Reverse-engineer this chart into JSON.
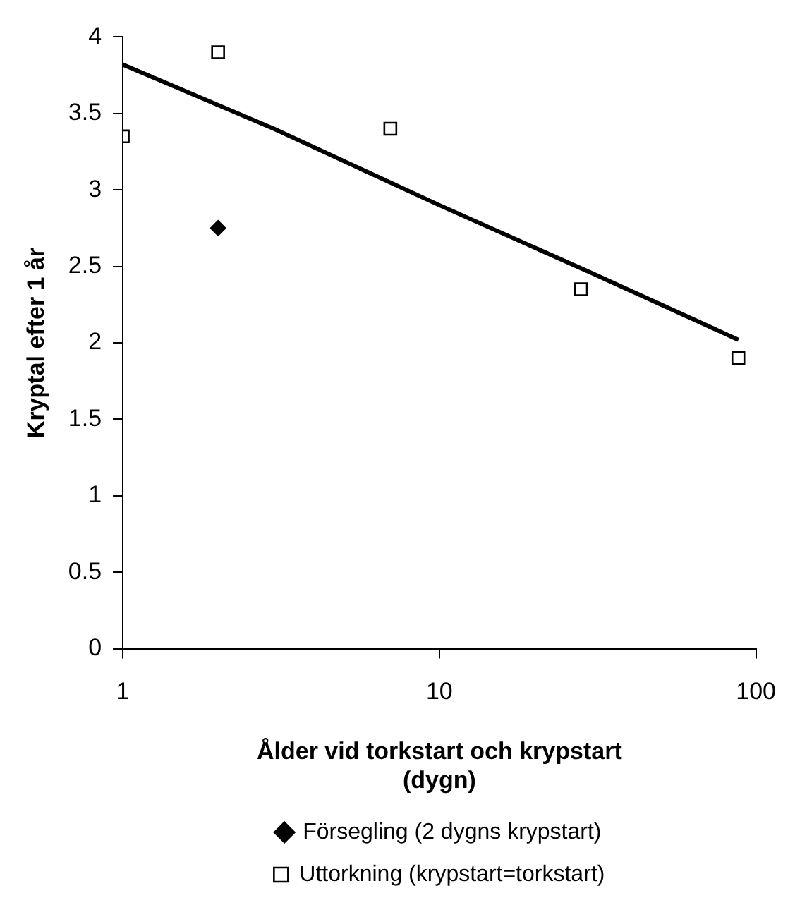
{
  "chart_data": {
    "type": "scatter",
    "xlabel": "Ålder vid torkstart och krypstart (dygn)",
    "ylabel": "Kryptal efter 1 år",
    "log": "x",
    "xlim": [
      1,
      100
    ],
    "xticks": [
      1,
      10,
      100
    ],
    "ylim": [
      0,
      4
    ],
    "yticks": [
      0,
      0.5,
      1,
      1.5,
      2,
      2.5,
      3,
      3.5,
      4
    ],
    "grid": false,
    "legend": "bottom",
    "series": [
      {
        "name": "Försegling (2 dygns krypstart)",
        "color": "#000000",
        "marker": "diamond",
        "x": [
          2
        ],
        "values": [
          2.75
        ]
      },
      {
        "name": "Uttorkning (krypstart=torkstart)",
        "color": "#000000",
        "marker": "square",
        "x": [
          1,
          2,
          7,
          28,
          88
        ],
        "values": [
          3.35,
          3.9,
          3.4,
          2.35,
          1.9
        ]
      },
      {
        "type": "line",
        "color": "#000000",
        "marker": "none",
        "line_style": "solid",
        "x": [
          1,
          3,
          10,
          30,
          88
        ],
        "values": [
          3.82,
          3.4,
          2.9,
          2.46,
          2.02
        ]
      }
    ]
  }
}
